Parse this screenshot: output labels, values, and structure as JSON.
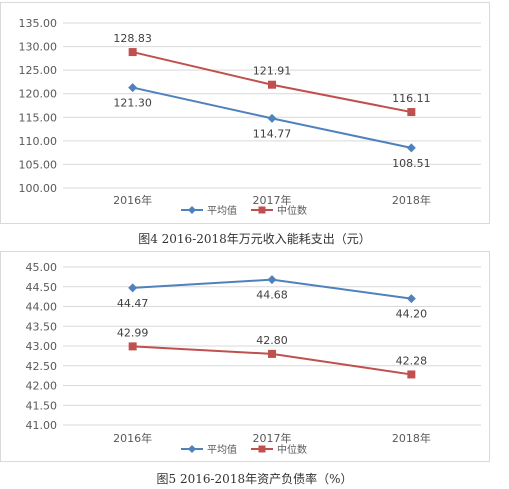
{
  "colors": {
    "avg": "#4f81bd",
    "median": "#c0504d",
    "grid": "#d9d9d9",
    "axis_text": "#595959"
  },
  "chart_data": [
    {
      "type": "line",
      "title": "",
      "xlabel": "",
      "ylabel": "",
      "categories": [
        "2016年",
        "2017年",
        "2018年"
      ],
      "ylim": [
        100,
        135
      ],
      "yticks": [
        "100.00",
        "105.00",
        "110.00",
        "115.00",
        "120.00",
        "125.00",
        "130.00",
        "135.00"
      ],
      "grid": true,
      "legend": "bottom-center",
      "series": [
        {
          "name": "平均值",
          "values": [
            121.3,
            114.77,
            108.51
          ],
          "labels": [
            "121.30",
            "114.77",
            "108.51"
          ],
          "color": "#4f81bd",
          "marker": "diamond",
          "label_pos": "below"
        },
        {
          "name": "中位数",
          "values": [
            128.83,
            121.91,
            116.11
          ],
          "labels": [
            "128.83",
            "121.91",
            "116.11"
          ],
          "color": "#c0504d",
          "marker": "square",
          "label_pos": "above"
        }
      ],
      "caption": "图4  2016-2018年万元收入能耗支出（元）"
    },
    {
      "type": "line",
      "title": "",
      "xlabel": "",
      "ylabel": "",
      "categories": [
        "2016年",
        "2017年",
        "2018年"
      ],
      "ylim": [
        41,
        45
      ],
      "yticks": [
        "41.00",
        "41.50",
        "42.00",
        "42.50",
        "43.00",
        "43.50",
        "44.00",
        "44.50",
        "45.00"
      ],
      "grid": true,
      "legend": "bottom-center",
      "series": [
        {
          "name": "平均值",
          "values": [
            44.47,
            44.68,
            44.2
          ],
          "labels": [
            "44.47",
            "44.68",
            "44.20"
          ],
          "color": "#4f81bd",
          "marker": "diamond",
          "label_pos": "below"
        },
        {
          "name": "中位数",
          "values": [
            42.99,
            42.8,
            42.28
          ],
          "labels": [
            "42.99",
            "42.80",
            "42.28"
          ],
          "color": "#c0504d",
          "marker": "square",
          "label_pos": "above"
        }
      ],
      "caption": "图5  2016-2018年资产负债率（%）"
    }
  ]
}
